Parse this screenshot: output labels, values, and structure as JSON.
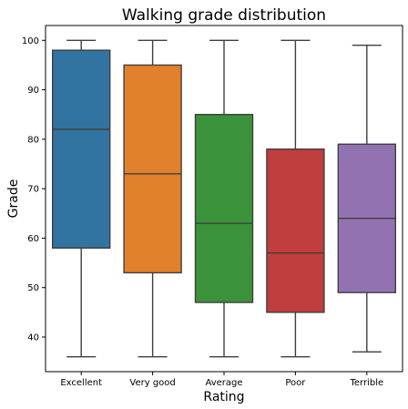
{
  "chart_data": {
    "type": "box",
    "title": "Walking grade distribution",
    "xlabel": "Rating",
    "ylabel": "Grade",
    "ylim": [
      33,
      103
    ],
    "yticks": [
      40,
      50,
      60,
      70,
      80,
      90,
      100
    ],
    "grid": false,
    "categories": [
      "Excellent",
      "Very good",
      "Average",
      "Poor",
      "Terrible"
    ],
    "boxes": [
      {
        "min": 36,
        "q1": 58,
        "median": 82,
        "q3": 98,
        "max": 100,
        "color": "#3274a1"
      },
      {
        "min": 36,
        "q1": 53,
        "median": 73,
        "q3": 95,
        "max": 100,
        "color": "#e1812c"
      },
      {
        "min": 36,
        "q1": 47,
        "median": 63,
        "q3": 85,
        "max": 100,
        "color": "#3a923a"
      },
      {
        "min": 36,
        "q1": 45,
        "median": 57,
        "q3": 78,
        "max": 100,
        "color": "#c03d3e"
      },
      {
        "min": 37,
        "q1": 49,
        "median": 64,
        "q3": 79,
        "max": 99,
        "color": "#9372b2"
      }
    ]
  }
}
